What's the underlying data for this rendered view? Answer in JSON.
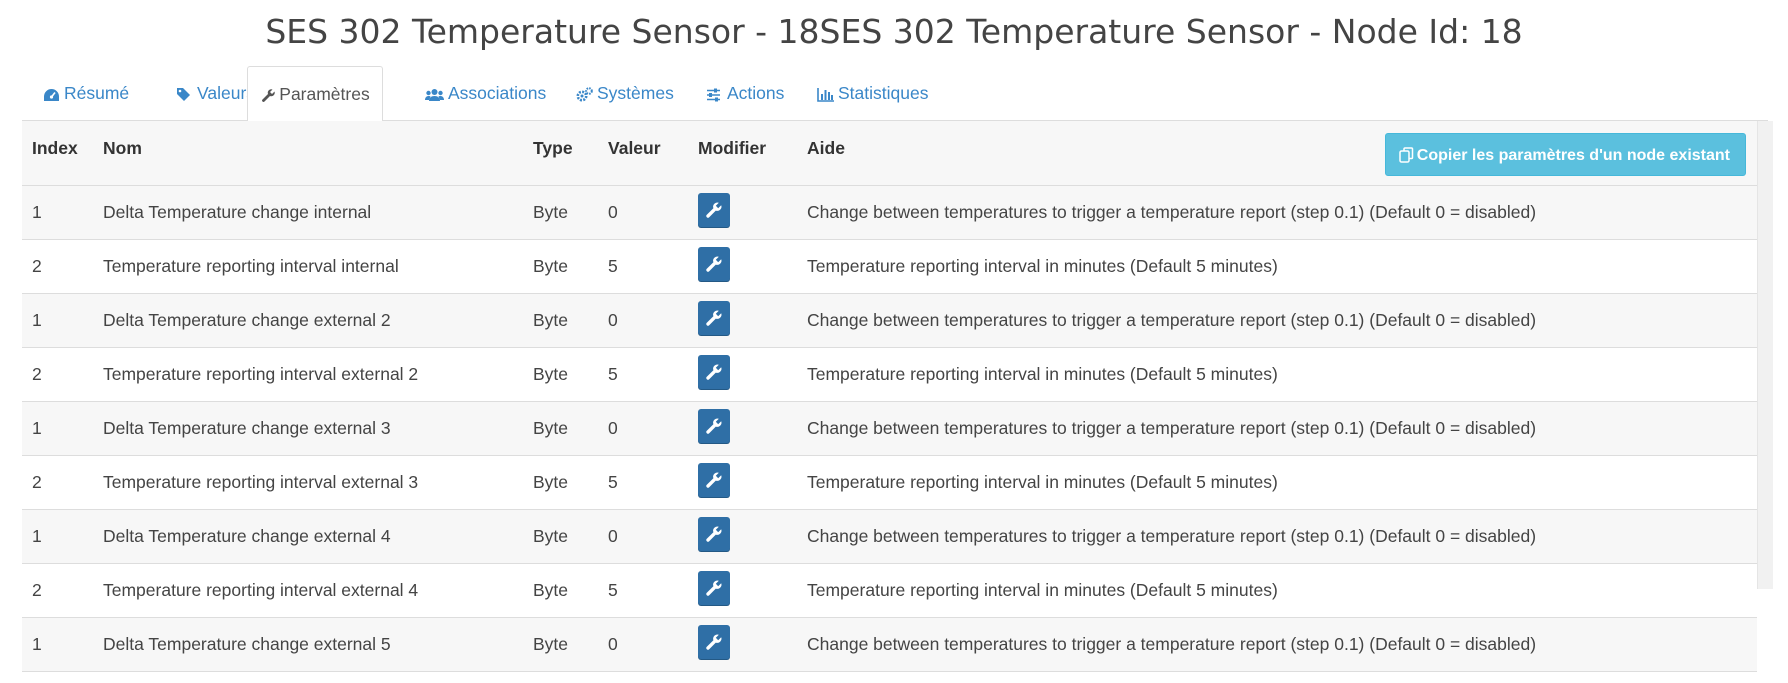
{
  "title": "SES 302 Temperature Sensor - 18SES 302 Temperature Sensor - Node Id: 18",
  "tabs": [
    {
      "label": "Résumé",
      "icon": "dashboard-icon"
    },
    {
      "label": "Valeurs",
      "icon": "tag-icon"
    },
    {
      "label": "Paramètres",
      "icon": "wrench-icon",
      "active": true
    },
    {
      "label": "Associations",
      "icon": "users-icon"
    },
    {
      "label": "Systèmes",
      "icon": "cogs-icon"
    },
    {
      "label": "Actions",
      "icon": "sliders-icon"
    },
    {
      "label": "Statistiques",
      "icon": "bar-chart-icon"
    }
  ],
  "table": {
    "headers": {
      "index": "Index",
      "nom": "Nom",
      "type": "Type",
      "valeur": "Valeur",
      "modifier": "Modifier",
      "aide": "Aide"
    },
    "copy_button": "Copier les paramètres d'un node existant",
    "rows": [
      {
        "index": "1",
        "nom": "Delta Temperature change internal",
        "type": "Byte",
        "valeur": "0",
        "aide": "Change between temperatures to trigger a temperature report (step 0.1) (Default 0 = disabled)"
      },
      {
        "index": "2",
        "nom": "Temperature reporting interval internal",
        "type": "Byte",
        "valeur": "5",
        "aide": "Temperature reporting interval in minutes (Default 5 minutes)"
      },
      {
        "index": "1",
        "nom": "Delta Temperature change external 2",
        "type": "Byte",
        "valeur": "0",
        "aide": "Change between temperatures to trigger a temperature report (step 0.1) (Default 0 = disabled)"
      },
      {
        "index": "2",
        "nom": "Temperature reporting interval external 2",
        "type": "Byte",
        "valeur": "5",
        "aide": "Temperature reporting interval in minutes (Default 5 minutes)"
      },
      {
        "index": "1",
        "nom": "Delta Temperature change external 3",
        "type": "Byte",
        "valeur": "0",
        "aide": "Change between temperatures to trigger a temperature report (step 0.1) (Default 0 = disabled)"
      },
      {
        "index": "2",
        "nom": "Temperature reporting interval external 3",
        "type": "Byte",
        "valeur": "5",
        "aide": "Temperature reporting interval in minutes (Default 5 minutes)"
      },
      {
        "index": "1",
        "nom": "Delta Temperature change external 4",
        "type": "Byte",
        "valeur": "0",
        "aide": "Change between temperatures to trigger a temperature report (step 0.1) (Default 0 = disabled)"
      },
      {
        "index": "2",
        "nom": "Temperature reporting interval external 4",
        "type": "Byte",
        "valeur": "5",
        "aide": "Temperature reporting interval in minutes (Default 5 minutes)"
      },
      {
        "index": "1",
        "nom": "Delta Temperature change external 5",
        "type": "Byte",
        "valeur": "0",
        "aide": "Change between temperatures to trigger a temperature report (step 0.1) (Default 0 = disabled)"
      }
    ]
  },
  "colors": {
    "link": "#3a87c8",
    "edit_button": "#2f6fa6",
    "copy_button": "#5bc0de"
  }
}
